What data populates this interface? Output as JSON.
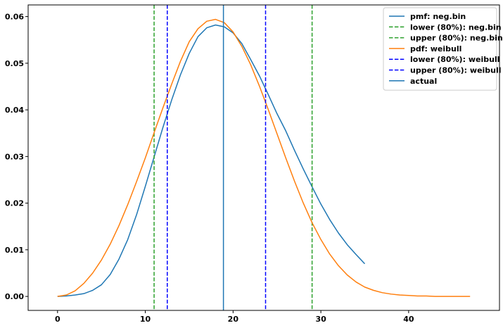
{
  "chart_data": {
    "type": "line",
    "title": "",
    "xlabel": "",
    "ylabel": "",
    "xlim": [
      -3.35,
      50.35
    ],
    "ylim": [
      -0.003,
      0.0625
    ],
    "xticks": [
      0,
      10,
      20,
      30,
      40
    ],
    "yticks": [
      0.0,
      0.01,
      0.02,
      0.03,
      0.04,
      0.05,
      0.06
    ],
    "ytick_labels": [
      "0.00",
      "0.01",
      "0.02",
      "0.03",
      "0.04",
      "0.05",
      "0.06"
    ],
    "grid": false,
    "legend_position": "top-right",
    "series": [
      {
        "name": "pmf: neg.bin",
        "style": "solid",
        "color": "#1f77b4",
        "x": [
          0,
          1,
          2,
          3,
          4,
          5,
          6,
          7,
          8,
          9,
          10,
          11,
          12,
          13,
          14,
          15,
          16,
          17,
          18,
          19,
          20,
          21,
          22,
          23,
          24,
          25,
          26,
          27,
          28,
          29,
          30,
          31,
          32,
          33,
          34,
          35
        ],
        "y": [
          0.0,
          0.0001,
          0.0003,
          0.0006,
          0.0013,
          0.0025,
          0.0047,
          0.008,
          0.0122,
          0.0175,
          0.0236,
          0.0299,
          0.0362,
          0.0421,
          0.0475,
          0.0521,
          0.0557,
          0.0576,
          0.0582,
          0.0578,
          0.0565,
          0.0542,
          0.0508,
          0.0473,
          0.0433,
          0.0392,
          0.0355,
          0.0313,
          0.0273,
          0.0235,
          0.0198,
          0.0165,
          0.0136,
          0.0111,
          0.009,
          0.007
        ]
      },
      {
        "name": "lower (80%): neg.bin",
        "style": "dashed",
        "color": "#2ca02c",
        "vline": 11
      },
      {
        "name": "upper (80%): neg.bin",
        "style": "dashed",
        "color": "#2ca02c",
        "vline": 29
      },
      {
        "name": "pdf: weibull",
        "style": "solid",
        "color": "#ff7f0e",
        "x": [
          0,
          1,
          2,
          3,
          4,
          5,
          6,
          7,
          8,
          9,
          10,
          11,
          12,
          13,
          14,
          15,
          16,
          17,
          18,
          19,
          20,
          21,
          22,
          23,
          24,
          25,
          26,
          27,
          28,
          29,
          30,
          31,
          32,
          33,
          34,
          35,
          36,
          37,
          38,
          39,
          40,
          41,
          42,
          43,
          44,
          45,
          46,
          47
        ],
        "y": [
          0.0,
          0.0003,
          0.0012,
          0.0028,
          0.005,
          0.0078,
          0.0112,
          0.0152,
          0.0197,
          0.0246,
          0.0297,
          0.0351,
          0.0404,
          0.0455,
          0.0504,
          0.0546,
          0.0574,
          0.059,
          0.0594,
          0.0587,
          0.0567,
          0.0536,
          0.0497,
          0.0451,
          0.0401,
          0.0349,
          0.0297,
          0.0247,
          0.02,
          0.0158,
          0.0122,
          0.0091,
          0.0066,
          0.0046,
          0.0031,
          0.002,
          0.0013,
          0.0008,
          0.0005,
          0.0003,
          0.0002,
          0.0001,
          0.0001,
          0.0,
          0.0,
          0.0,
          0.0,
          0.0
        ]
      },
      {
        "name": "lower (80%): weibull",
        "style": "dashed",
        "color": "#0000ff",
        "vline": 12.5
      },
      {
        "name": "upper (80%): weibull",
        "style": "dashed",
        "color": "#0000ff",
        "vline": 23.7
      },
      {
        "name": "actual",
        "style": "solid",
        "color": "#1f77b4",
        "vline": 18.9
      }
    ]
  }
}
